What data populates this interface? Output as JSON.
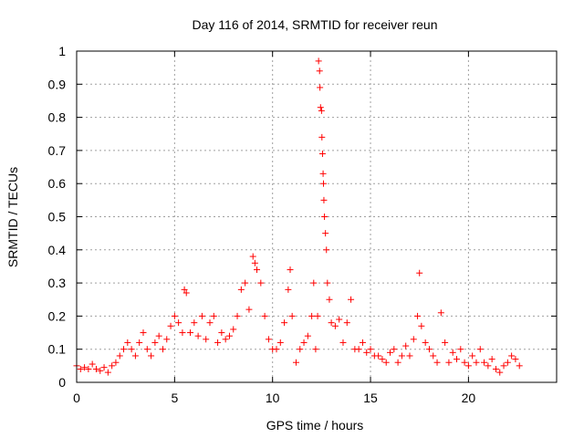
{
  "chart_data": {
    "type": "scatter",
    "title": "Day 116 of 2014, SRMTID for receiver reun",
    "xlabel": "GPS time / hours",
    "ylabel": "SRMTID / TECUs",
    "xlim": [
      0,
      24.5
    ],
    "ylim": [
      0,
      1
    ],
    "xticks": [
      0,
      5,
      10,
      15,
      20
    ],
    "xtick_labels": [
      "0",
      "5",
      "10",
      "15",
      "20"
    ],
    "yticks": [
      0,
      0.1,
      0.2,
      0.3,
      0.4,
      0.5,
      0.6,
      0.7,
      0.8,
      0.9,
      1
    ],
    "ytick_labels": [
      "0",
      "0.1",
      "0.2",
      "0.3",
      "0.4",
      "0.5",
      "0.6",
      "0.7",
      "0.8",
      "0.9",
      "1"
    ],
    "grid": true,
    "marker": "plus",
    "color": "#ff0000",
    "series": [
      {
        "points": [
          [
            0.0,
            0.05
          ],
          [
            0.2,
            0.04
          ],
          [
            0.4,
            0.045
          ],
          [
            0.6,
            0.04
          ],
          [
            0.8,
            0.055
          ],
          [
            1.0,
            0.04
          ],
          [
            1.2,
            0.035
          ],
          [
            1.4,
            0.045
          ],
          [
            1.6,
            0.03
          ],
          [
            1.8,
            0.05
          ],
          [
            2.0,
            0.06
          ],
          [
            2.2,
            0.08
          ],
          [
            2.4,
            0.1
          ],
          [
            2.6,
            0.12
          ],
          [
            2.8,
            0.1
          ],
          [
            3.0,
            0.08
          ],
          [
            3.2,
            0.12
          ],
          [
            3.4,
            0.15
          ],
          [
            3.6,
            0.1
          ],
          [
            3.8,
            0.08
          ],
          [
            4.0,
            0.12
          ],
          [
            4.2,
            0.14
          ],
          [
            4.4,
            0.1
          ],
          [
            4.6,
            0.13
          ],
          [
            4.8,
            0.17
          ],
          [
            5.0,
            0.2
          ],
          [
            5.2,
            0.18
          ],
          [
            5.4,
            0.15
          ],
          [
            5.5,
            0.28
          ],
          [
            5.6,
            0.27
          ],
          [
            5.8,
            0.15
          ],
          [
            6.0,
            0.18
          ],
          [
            6.2,
            0.14
          ],
          [
            6.4,
            0.2
          ],
          [
            6.6,
            0.13
          ],
          [
            6.8,
            0.18
          ],
          [
            7.0,
            0.2
          ],
          [
            7.2,
            0.12
          ],
          [
            7.4,
            0.15
          ],
          [
            7.6,
            0.13
          ],
          [
            7.8,
            0.14
          ],
          [
            8.0,
            0.16
          ],
          [
            8.2,
            0.2
          ],
          [
            8.4,
            0.28
          ],
          [
            8.6,
            0.3
          ],
          [
            8.8,
            0.22
          ],
          [
            9.0,
            0.38
          ],
          [
            9.1,
            0.36
          ],
          [
            9.2,
            0.34
          ],
          [
            9.4,
            0.3
          ],
          [
            9.6,
            0.2
          ],
          [
            9.8,
            0.13
          ],
          [
            10.0,
            0.1
          ],
          [
            10.2,
            0.1
          ],
          [
            10.4,
            0.12
          ],
          [
            10.6,
            0.18
          ],
          [
            10.8,
            0.28
          ],
          [
            10.9,
            0.34
          ],
          [
            11.0,
            0.2
          ],
          [
            11.2,
            0.06
          ],
          [
            11.4,
            0.1
          ],
          [
            11.6,
            0.12
          ],
          [
            11.8,
            0.14
          ],
          [
            12.0,
            0.2
          ],
          [
            12.1,
            0.3
          ],
          [
            12.2,
            0.1
          ],
          [
            12.3,
            0.2
          ],
          [
            12.35,
            0.97
          ],
          [
            12.4,
            0.94
          ],
          [
            12.42,
            0.89
          ],
          [
            12.45,
            0.83
          ],
          [
            12.5,
            0.82
          ],
          [
            12.52,
            0.74
          ],
          [
            12.55,
            0.69
          ],
          [
            12.58,
            0.63
          ],
          [
            12.6,
            0.6
          ],
          [
            12.62,
            0.55
          ],
          [
            12.65,
            0.5
          ],
          [
            12.7,
            0.45
          ],
          [
            12.75,
            0.4
          ],
          [
            12.8,
            0.3
          ],
          [
            12.9,
            0.25
          ],
          [
            13.0,
            0.18
          ],
          [
            13.2,
            0.17
          ],
          [
            13.4,
            0.19
          ],
          [
            13.6,
            0.12
          ],
          [
            13.8,
            0.18
          ],
          [
            14.0,
            0.25
          ],
          [
            14.2,
            0.1
          ],
          [
            14.4,
            0.1
          ],
          [
            14.6,
            0.12
          ],
          [
            14.8,
            0.09
          ],
          [
            15.0,
            0.1
          ],
          [
            15.2,
            0.08
          ],
          [
            15.4,
            0.08
          ],
          [
            15.6,
            0.07
          ],
          [
            15.8,
            0.06
          ],
          [
            16.0,
            0.09
          ],
          [
            16.2,
            0.1
          ],
          [
            16.4,
            0.06
          ],
          [
            16.6,
            0.08
          ],
          [
            16.8,
            0.11
          ],
          [
            17.0,
            0.08
          ],
          [
            17.2,
            0.13
          ],
          [
            17.4,
            0.2
          ],
          [
            17.5,
            0.33
          ],
          [
            17.6,
            0.17
          ],
          [
            17.8,
            0.12
          ],
          [
            18.0,
            0.1
          ],
          [
            18.2,
            0.08
          ],
          [
            18.4,
            0.06
          ],
          [
            18.6,
            0.21
          ],
          [
            18.8,
            0.12
          ],
          [
            19.0,
            0.06
          ],
          [
            19.2,
            0.09
          ],
          [
            19.4,
            0.07
          ],
          [
            19.6,
            0.1
          ],
          [
            19.8,
            0.06
          ],
          [
            20.0,
            0.05
          ],
          [
            20.2,
            0.08
          ],
          [
            20.4,
            0.06
          ],
          [
            20.6,
            0.1
          ],
          [
            20.8,
            0.06
          ],
          [
            21.0,
            0.05
          ],
          [
            21.2,
            0.07
          ],
          [
            21.4,
            0.04
          ],
          [
            21.6,
            0.03
          ],
          [
            21.8,
            0.05
          ],
          [
            22.0,
            0.06
          ],
          [
            22.2,
            0.08
          ],
          [
            22.4,
            0.07
          ],
          [
            22.6,
            0.05
          ]
        ]
      }
    ]
  }
}
